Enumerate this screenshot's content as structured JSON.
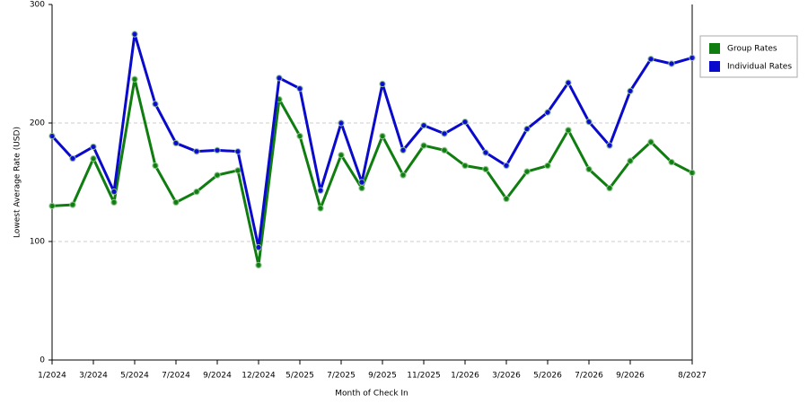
{
  "chart_data": {
    "type": "line",
    "x_label": "Month of Check In",
    "y_label": "Lowest Average Rate (USD)",
    "categories": [
      "1/2024",
      null,
      "3/2024",
      null,
      "5/2024",
      null,
      "7/2024",
      null,
      "9/2024",
      null,
      "12/2024",
      null,
      "5/2025",
      null,
      "7/2025",
      null,
      "9/2025",
      null,
      "11/2025",
      null,
      "1/2026",
      null,
      "3/2026",
      null,
      "5/2026",
      null,
      "7/2026",
      null,
      "9/2026",
      null,
      null,
      "8/2027"
    ],
    "series": [
      {
        "name": "Group Rates",
        "color": "#0f7d0f",
        "values": [
          130,
          131,
          170,
          133,
          237,
          164,
          133,
          142,
          156,
          160,
          80,
          220,
          189,
          128,
          173,
          145,
          189,
          156,
          181,
          177,
          164,
          161,
          136,
          159,
          164,
          194,
          161,
          145,
          168,
          184,
          167,
          158
        ]
      },
      {
        "name": "Individual Rates",
        "color": "#0a0acc",
        "values": [
          189,
          170,
          180,
          142,
          275,
          216,
          183,
          176,
          177,
          176,
          95,
          238,
          229,
          143,
          200,
          150,
          233,
          177,
          198,
          191,
          201,
          175,
          164,
          195,
          209,
          234,
          201,
          181,
          227,
          254,
          250,
          255
        ]
      }
    ],
    "ylim": [
      0,
      300
    ],
    "yticks": [
      0,
      100,
      200,
      300
    ],
    "grid": true,
    "legend": "right"
  }
}
